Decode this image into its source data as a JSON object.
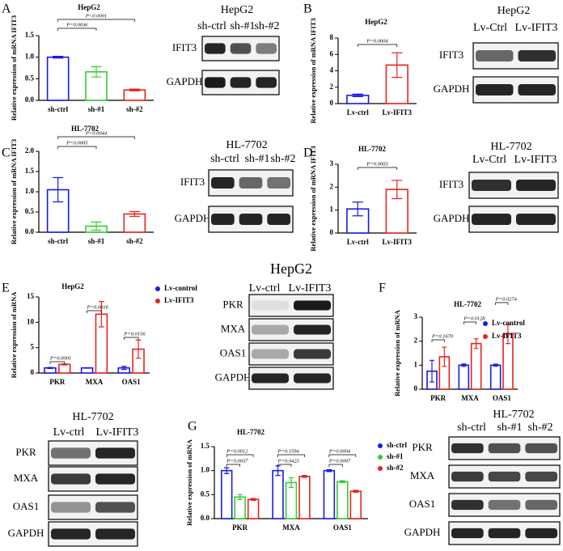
{
  "panel_labels": [
    "A",
    "B",
    "C",
    "D",
    "E",
    "F",
    "G"
  ],
  "chart_data": [
    {
      "type": "bar",
      "title": "HepG2",
      "y_label": "Relative expression of mRNA IFIT3",
      "categories": [
        "sh-ctrl",
        "sh-#1",
        "sh-#2"
      ],
      "values": [
        1.0,
        0.66,
        0.24
      ],
      "errors": [
        0.02,
        0.12,
        0.02
      ],
      "colors": [
        "#1a1ae6",
        "#33cc33",
        "#e8231f"
      ],
      "ylim": [
        0,
        1.5
      ],
      "yticks": [
        {
          "value": 0,
          "label": "0.0"
        },
        0.5,
        {
          "value": 1,
          "label": "1.0"
        },
        1.5
      ],
      "annotations": [
        "P<0.0001",
        "P=0.0036"
      ]
    },
    {
      "type": "bar",
      "title": "HepG2",
      "y_label": "Relative expression of mRNA IFIT3",
      "categories": [
        "Lv-ctrl",
        "Lv-IFIT3"
      ],
      "values": [
        1.0,
        4.7
      ],
      "errors": [
        0.15,
        1.5
      ],
      "colors": [
        "#1a1ae6",
        "#e8231f"
      ],
      "ylim": [
        0,
        8
      ],
      "yticks": [
        0,
        2,
        4,
        6,
        8
      ],
      "annotations": [
        "P=0.0004"
      ]
    },
    {
      "type": "bar",
      "title": "HL-7702",
      "y_label": "Relative expression of mRNA IFIT3",
      "categories": [
        "sh-ctrl",
        "sh-#1",
        "sh-#2"
      ],
      "values": [
        1.05,
        0.15,
        0.45
      ],
      "errors": [
        0.3,
        0.1,
        0.06
      ],
      "colors": [
        "#1a1ae6",
        "#33cc33",
        "#e8231f"
      ],
      "ylim": [
        0,
        2
      ],
      "yticks": [
        {
          "value": 0,
          "label": "0.0"
        },
        0.5,
        {
          "value": 1,
          "label": "1.0"
        },
        1.5,
        {
          "value": 2,
          "label": "2.0"
        }
      ],
      "annotations": [
        "P<0.0044",
        "P=0.0005"
      ]
    },
    {
      "type": "bar",
      "title": "HL-7702",
      "y_label": "Relative expression of mRNA IFIT3",
      "categories": [
        "Lv-ctrl",
        "Lv-IFIT3"
      ],
      "values": [
        1.05,
        1.9
      ],
      "errors": [
        0.3,
        0.4
      ],
      "colors": [
        "#1a1ae6",
        "#e8231f"
      ],
      "ylim": [
        0,
        3
      ],
      "yticks": [
        0,
        1,
        2,
        3
      ],
      "annotations": [
        "P=0.0003"
      ]
    },
    {
      "type": "bar",
      "title": "HepG2",
      "y_label": "Relative expression of mRNA",
      "categories": [
        "PKR",
        "MXA",
        "OAS1"
      ],
      "series": [
        {
          "name": "Lv-control",
          "color": "#1a1ae6",
          "values": [
            1,
            1,
            1
          ],
          "errors": [
            0.1,
            0.05,
            0.3
          ]
        },
        {
          "name": "Lv-IFIT3",
          "color": "#e8231f",
          "values": [
            1.7,
            11.6,
            4.7
          ],
          "errors": [
            0.1,
            2.5,
            1.8
          ]
        }
      ],
      "ylim": [
        0,
        15
      ],
      "yticks": [
        0,
        5,
        10,
        15
      ],
      "annotations": [
        "P=0.0001",
        "P=0.0016",
        "P=0.0156"
      ]
    },
    {
      "type": "bar",
      "title": "HL-7702",
      "y_label": "Relative expression of mRNA",
      "categories": [
        "PKR",
        "MXA",
        "OAS1"
      ],
      "series": [
        {
          "name": "Lv-control",
          "color": "#1a1ae6",
          "values": [
            0.75,
            1.0,
            1.0
          ],
          "errors": [
            0.45,
            0.05,
            0.04
          ]
        },
        {
          "name": "Lv-IFIT3",
          "color": "#e8231f",
          "values": [
            1.35,
            1.9,
            2.3
          ],
          "errors": [
            0.4,
            0.2,
            0.4
          ]
        }
      ],
      "ylim": [
        0,
        3
      ],
      "yticks": [
        0,
        1,
        2,
        3
      ],
      "annotations": [
        "P=0.1670",
        "P=0.0128",
        "P=0.0274"
      ]
    },
    {
      "type": "bar",
      "title": "HL-7702",
      "y_label": "Relative expression of mRNA",
      "categories": [
        "PKR",
        "MXA",
        "OAS1"
      ],
      "series": [
        {
          "name": "sh-ctrl",
          "color": "#1a1ae6",
          "values": [
            1.0,
            1.0,
            1.0
          ],
          "errors": [
            0.06,
            0.1,
            0.02
          ]
        },
        {
          "name": "sh-#1",
          "color": "#33cc33",
          "values": [
            0.45,
            0.75,
            0.77
          ],
          "errors": [
            0.05,
            0.1,
            0.02
          ]
        },
        {
          "name": "sh-#2",
          "color": "#e8231f",
          "values": [
            0.4,
            0.88,
            0.57
          ],
          "errors": [
            0.02,
            0.02,
            0.02
          ]
        }
      ],
      "ylim": [
        0,
        1.5
      ],
      "yticks": [
        {
          "value": 0,
          "label": "0.0"
        },
        0.5,
        {
          "value": 1,
          "label": "1.0"
        },
        1.5
      ],
      "annotations": [
        "P=0.0012",
        "P=0.0037",
        "P=0.1594",
        "P=0.0423",
        "P=0.0004",
        "P=0.0007"
      ]
    }
  ],
  "blots": [
    {
      "title": "HepG2",
      "lanes": [
        "sh-ctrl",
        "sh-#1",
        "sh-#2"
      ],
      "rows": [
        "IFIT3",
        "GAPDH"
      ]
    },
    {
      "title": "HepG2",
      "lanes": [
        "Lv-Ctrl",
        "Lv-IFIT3"
      ],
      "rows": [
        "IFIT3",
        "GAPDH"
      ]
    },
    {
      "title": "HL-7702",
      "lanes": [
        "sh-ctrl",
        "sh-#1",
        "sh-#2"
      ],
      "rows": [
        "IFIT3",
        "GAPDH"
      ]
    },
    {
      "title": "HL-7702",
      "lanes": [
        "Lv-Ctrl",
        "Lv-IFIT3"
      ],
      "rows": [
        "IFIT3",
        "GAPDH"
      ]
    },
    {
      "title": "HepG2",
      "lanes": [
        "Lv-ctrl",
        "Lv-IFIT3"
      ],
      "rows": [
        "PKR",
        "MXA",
        "OAS1",
        "GAPDH"
      ]
    },
    {
      "title": "HL-7702",
      "lanes": [
        "Lv-ctrl",
        "Lv-IFIT3"
      ],
      "rows": [
        "PKR",
        "MXA",
        "OAS1",
        "GAPDH"
      ]
    },
    {
      "title": "HL-7702",
      "lanes": [
        "sh-ctrl",
        "sh-#1",
        "sh-#2"
      ],
      "rows": [
        "PKR",
        "MXA",
        "OAS1",
        "GAPDH"
      ]
    }
  ]
}
